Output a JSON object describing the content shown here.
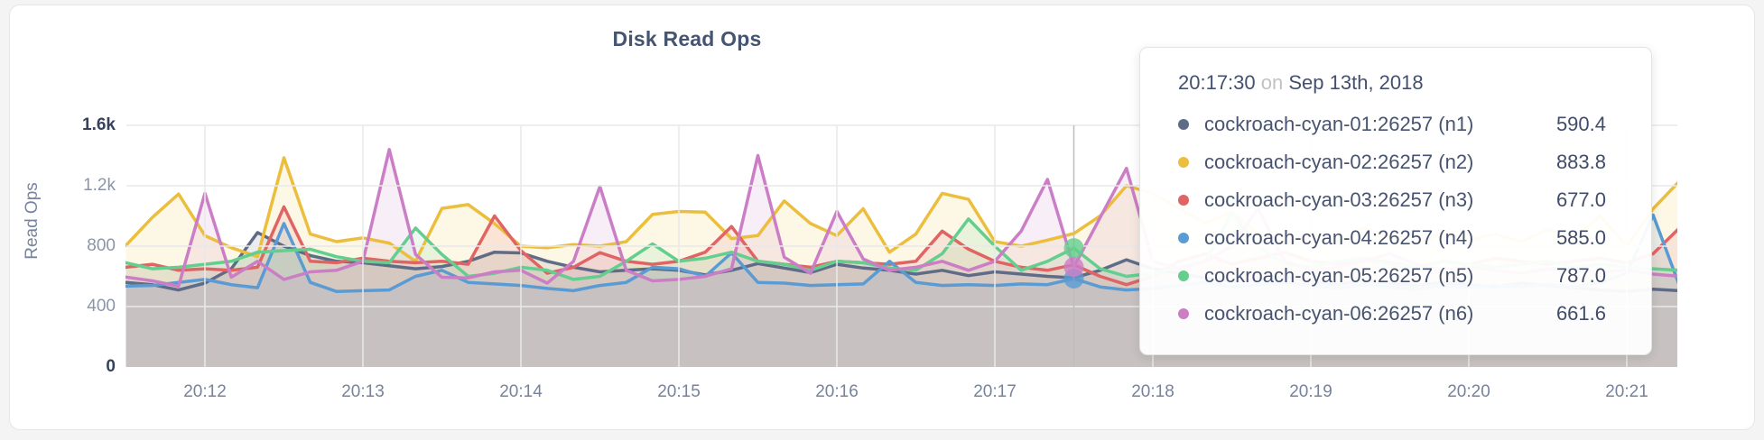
{
  "page": {
    "title": "Disk Read Ops",
    "y_axis_label": "Read Ops"
  },
  "tooltip": {
    "time": "20:17:30",
    "connector": "on",
    "date": "Sep 13th, 2018",
    "rows": [
      {
        "label": "cockroach-cyan-01:26257 (n1)",
        "value": "590.4",
        "color": "#5f6c87"
      },
      {
        "label": "cockroach-cyan-02:26257 (n2)",
        "value": "883.8",
        "color": "#ecbe3e"
      },
      {
        "label": "cockroach-cyan-03:26257 (n3)",
        "value": "677.0",
        "color": "#e06464"
      },
      {
        "label": "cockroach-cyan-04:26257 (n4)",
        "value": "585.0",
        "color": "#5b9bd3"
      },
      {
        "label": "cockroach-cyan-05:26257 (n5)",
        "value": "787.0",
        "color": "#63ce8e"
      },
      {
        "label": "cockroach-cyan-06:26257 (n6)",
        "value": "661.6",
        "color": "#cb7ec5"
      }
    ]
  },
  "chart_data": {
    "type": "line",
    "title": "Disk Read Ops",
    "ylabel": "Read Ops",
    "xlabel": "",
    "grid": true,
    "area_fill": true,
    "ylim": [
      0,
      1600
    ],
    "x_start": "20:11:30",
    "x_step_seconds": 10,
    "x_tick_labels": [
      "20:12",
      "20:13",
      "20:14",
      "20:15",
      "20:16",
      "20:17",
      "20:18",
      "20:19",
      "20:20",
      "20:21"
    ],
    "y_ticks": [
      {
        "label": "1.6k",
        "value": 1600,
        "emphasis": true
      },
      {
        "label": "1.2k",
        "value": 1200,
        "emphasis": false
      },
      {
        "label": "800",
        "value": 800,
        "emphasis": false
      },
      {
        "label": "400",
        "value": 400,
        "emphasis": false
      },
      {
        "label": "0",
        "value": 0,
        "emphasis": true
      }
    ],
    "hover": {
      "time": "20:17:30",
      "index": 36,
      "dot_series": [
        "n4",
        "n5",
        "n6"
      ],
      "crosshair_color": "#bdbdbd"
    },
    "series": [
      {
        "id": "n1",
        "name": "cockroach-cyan-01:26257 (n1)",
        "color": "#5f6c87",
        "values": [
          560,
          545,
          510,
          555,
          650,
          890,
          800,
          738,
          700,
          690,
          670,
          650,
          665,
          700,
          760,
          755,
          700,
          660,
          630,
          640,
          650,
          640,
          610,
          640,
          685,
          655,
          625,
          680,
          655,
          640,
          615,
          640,
          605,
          630,
          615,
          600,
          590.4,
          640,
          710,
          650,
          620,
          590,
          565,
          580,
          600,
          565,
          545,
          575,
          555,
          540,
          560,
          545,
          530,
          555,
          540,
          525,
          510,
          500,
          515,
          505
        ]
      },
      {
        "id": "n2",
        "name": "cockroach-cyan-02:26257 (n2)",
        "color": "#ecbe3e",
        "values": [
          805,
          990,
          1145,
          870,
          790,
          730,
          1385,
          880,
          830,
          855,
          820,
          700,
          1050,
          1075,
          950,
          800,
          790,
          810,
          800,
          830,
          1010,
          1030,
          1025,
          850,
          870,
          1100,
          950,
          870,
          1048,
          760,
          880,
          1150,
          1110,
          830,
          800,
          840,
          883.8,
          1000,
          1200,
          1150,
          1050,
          950,
          1030,
          880,
          820,
          880,
          830,
          920,
          860,
          810,
          890,
          840,
          880,
          830,
          910,
          860,
          1000,
          800,
          1048,
          1230
        ]
      },
      {
        "id": "n3",
        "name": "cockroach-cyan-03:26257 (n3)",
        "color": "#e06464",
        "values": [
          660,
          680,
          640,
          650,
          640,
          660,
          1060,
          700,
          690,
          720,
          700,
          690,
          700,
          680,
          1000,
          770,
          620,
          660,
          757,
          700,
          680,
          700,
          760,
          930,
          700,
          680,
          660,
          700,
          690,
          680,
          700,
          900,
          780,
          700,
          660,
          640,
          677,
          600,
          545,
          600,
          700,
          750,
          680,
          720,
          760,
          700,
          680,
          720,
          690,
          660,
          700,
          680,
          720,
          700,
          680,
          700,
          720,
          690,
          750,
          920
        ]
      },
      {
        "id": "n4",
        "name": "cockroach-cyan-04:26257 (n4)",
        "color": "#5b9bd3",
        "values": [
          535,
          540,
          560,
          580,
          545,
          525,
          950,
          560,
          500,
          505,
          510,
          600,
          640,
          560,
          550,
          540,
          520,
          505,
          540,
          560,
          660,
          650,
          600,
          755,
          560,
          555,
          540,
          545,
          550,
          700,
          560,
          540,
          545,
          540,
          550,
          545,
          585,
          530,
          510,
          520,
          540,
          560,
          530,
          545,
          560,
          540,
          520,
          545,
          530,
          515,
          540,
          525,
          540,
          530,
          545,
          530,
          560,
          620,
          1006,
          540
        ]
      },
      {
        "id": "n5",
        "name": "cockroach-cyan-05:26257 (n5)",
        "color": "#63ce8e",
        "values": [
          690,
          650,
          660,
          680,
          700,
          760,
          770,
          780,
          730,
          700,
          690,
          920,
          745,
          600,
          620,
          660,
          640,
          580,
          600,
          700,
          815,
          700,
          720,
          760,
          700,
          680,
          640,
          700,
          690,
          655,
          640,
          750,
          980,
          800,
          640,
          700,
          787,
          650,
          600,
          620,
          660,
          700,
          1020,
          800,
          680,
          660,
          700,
          720,
          680,
          660,
          700,
          680,
          660,
          680,
          700,
          660,
          680,
          660,
          650,
          640
        ]
      },
      {
        "id": "n6",
        "name": "cockroach-cyan-06:26257 (n6)",
        "color": "#cb7ec5",
        "values": [
          595,
          570,
          535,
          1150,
          594,
          700,
          580,
          630,
          640,
          700,
          1440,
          745,
          594,
          590,
          630,
          640,
          555,
          700,
          1195,
          640,
          570,
          580,
          600,
          650,
          1400,
          727,
          620,
          1030,
          715,
          640,
          660,
          700,
          640,
          700,
          900,
          1242,
          661.6,
          990,
          1315,
          700,
          650,
          700,
          800,
          1050,
          700,
          640,
          660,
          700,
          750,
          680,
          640,
          660,
          640,
          620,
          650,
          640,
          630,
          640,
          615,
          600
        ]
      }
    ]
  },
  "style": {
    "grid_color": "#e9e9e9",
    "fill_opacity": 0.13,
    "line_width": 3.5
  }
}
